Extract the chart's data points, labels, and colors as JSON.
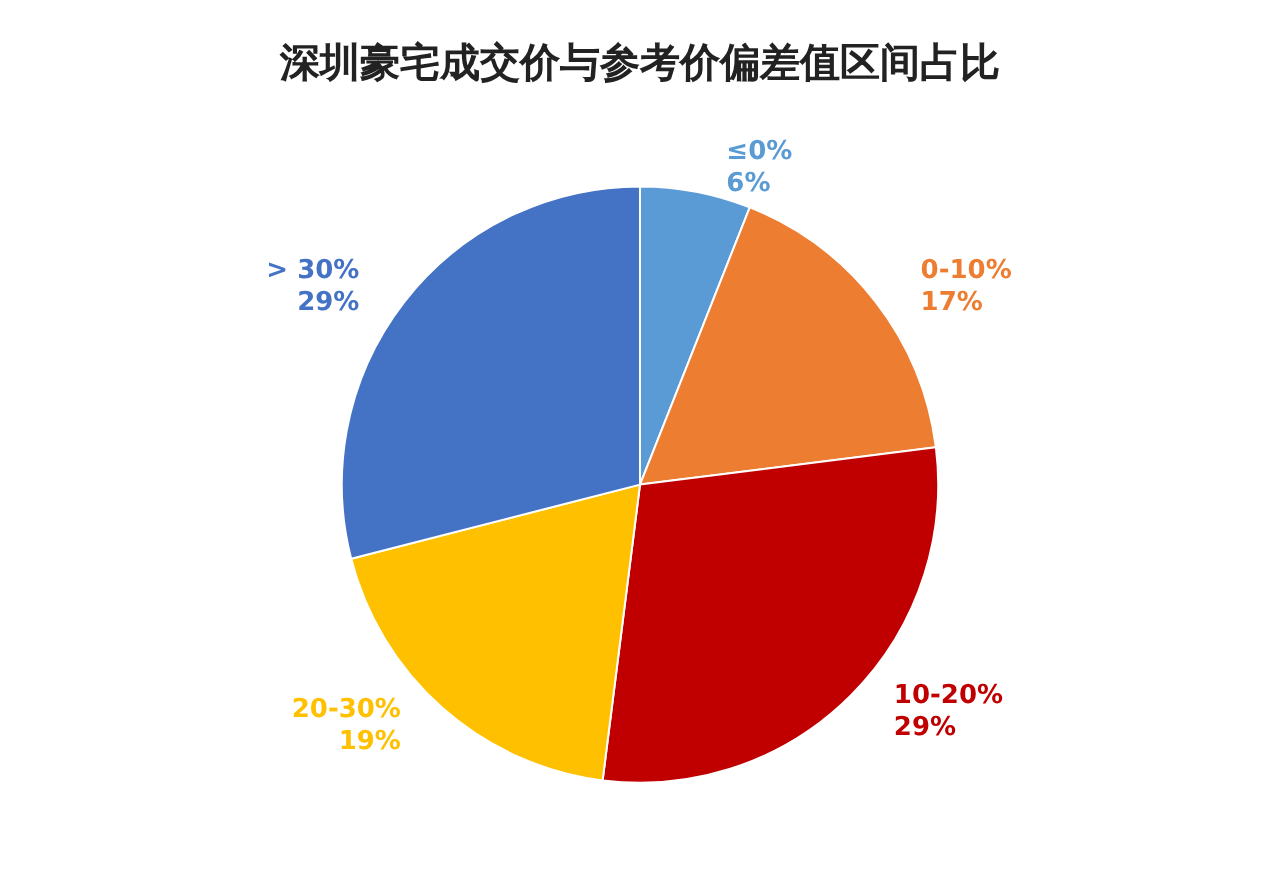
{
  "chart_data": {
    "type": "pie",
    "title": "深圳豪宅成交价与参考价偏差值区间占比",
    "categories": [
      "≤0%",
      "0-10%",
      "10-20%",
      "20-30%",
      "> 30%"
    ],
    "values": [
      6,
      17,
      29,
      19,
      29
    ],
    "value_labels": [
      "6%",
      "17%",
      "29%",
      "19%",
      "29%"
    ],
    "colors": [
      "#5b9bd5",
      "#ed7d31",
      "#c00000",
      "#ffc000",
      "#4472c4"
    ],
    "legend": false
  }
}
